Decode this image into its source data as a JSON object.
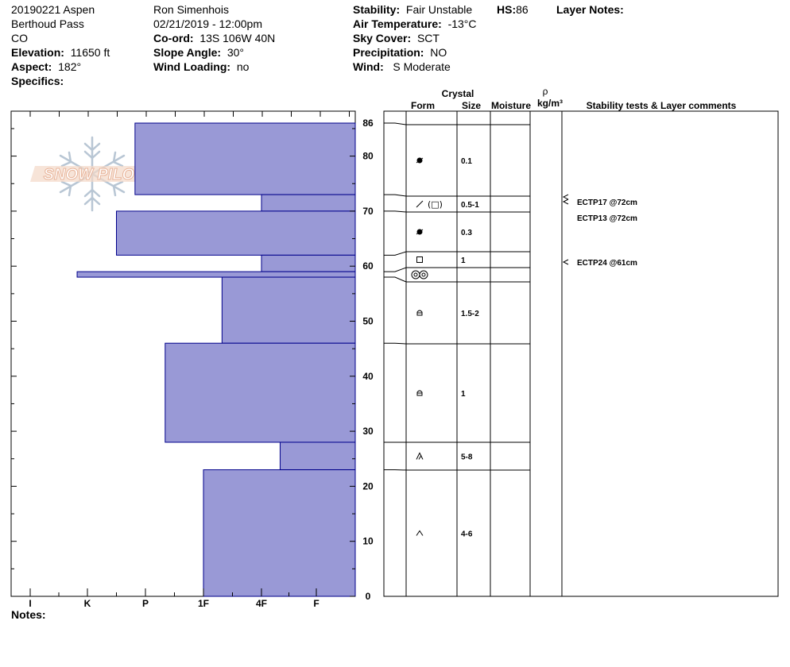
{
  "header": {
    "col1": {
      "line1": "20190221 Aspen",
      "line2": "Berthoud Pass",
      "line3": "CO",
      "elevation_label": "Elevation:",
      "elevation_value": "11650 ft",
      "aspect_label": "Aspect:",
      "aspect_value": "182°",
      "specifics_label": "Specifics:"
    },
    "col2": {
      "observer": "Ron Simenhois",
      "datetime": "02/21/2019 - 12:00pm",
      "coord_label": "Co-ord:",
      "coord_value": "13S 106W 40N",
      "slope_label": "Slope Angle:",
      "slope_value": "30°",
      "wind_loading_label": "Wind Loading:",
      "wind_loading_value": "no"
    },
    "col3": {
      "stability_label": "Stability:",
      "stability_value": "Fair Unstable",
      "hs_label": "HS:",
      "hs_value": "86",
      "air_temp_label": "Air Temperature:",
      "air_temp_value": "-13°C",
      "sky_label": "Sky Cover:",
      "sky_value": "SCT",
      "precip_label": "Precipitation:",
      "precip_value": "NO",
      "wind_label": "Wind:",
      "wind_value": "S Moderate"
    },
    "layer_notes_label": "Layer Notes:",
    "notes_label": "Notes:"
  },
  "logo": {
    "text": "SNOW PILOT"
  },
  "table_headers": {
    "crystal": "Crystal",
    "form": "Form",
    "size": "Size",
    "moisture": "Moisture",
    "rho": "ρ",
    "density_unit": "kg/m³",
    "stability": "Stability tests & Layer comments"
  },
  "colors": {
    "bar_fill": "#9999d6",
    "bar_stroke": "#00008b",
    "line": "#000000",
    "logo_text": "#e8b49a",
    "logo_flake": "#b8c6d4"
  },
  "chart_data": {
    "type": "bar",
    "orientation": "horizontal-profile",
    "title": "",
    "xlabel": "",
    "ylabel": "",
    "x_ticks": [
      "I",
      "K",
      "P",
      "1F",
      "4F",
      "F"
    ],
    "x_scale_note": "hand hardness decreasing to the right",
    "ylim": [
      0,
      86
    ],
    "y_ticks": [
      0,
      10,
      20,
      30,
      40,
      50,
      60,
      70,
      80,
      86
    ],
    "layers": [
      {
        "bottom": 73,
        "top": 86,
        "hardness": 1.82
      },
      {
        "bottom": 70,
        "top": 73,
        "hardness": 4.0
      },
      {
        "bottom": 62,
        "top": 70,
        "hardness": 1.5
      },
      {
        "bottom": 59,
        "top": 62,
        "hardness": 4.0
      },
      {
        "bottom": 58,
        "top": 59,
        "hardness": 0.82
      },
      {
        "bottom": 46,
        "top": 58,
        "hardness": 3.32
      },
      {
        "bottom": 28,
        "top": 46,
        "hardness": 2.34
      },
      {
        "bottom": 23,
        "top": 28,
        "hardness": 4.34
      },
      {
        "bottom": 0,
        "top": 23,
        "hardness": 3.0
      }
    ],
    "crystal_rows": [
      {
        "top": 86,
        "bottom": 73,
        "size": "0.1",
        "form_icon": "precip-particle-icon"
      },
      {
        "top": 73,
        "bottom": 70,
        "size": "0.5-1",
        "form_icon": "slash-bracket-square-icon",
        "form_text": "(□)"
      },
      {
        "top": 70,
        "bottom": 62,
        "size": "0.3",
        "form_icon": "precip-particle-icon"
      },
      {
        "top": 62,
        "bottom": 59,
        "size": "1",
        "form_icon": "square-icon"
      },
      {
        "top": 59,
        "bottom": 58,
        "size": "",
        "form_icon": "double-ring-icon"
      },
      {
        "top": 58,
        "bottom": 46,
        "size": "1.5-2",
        "form_icon": "small-facet-icon"
      },
      {
        "top": 46,
        "bottom": 28,
        "size": "1",
        "form_icon": "small-facet-icon"
      },
      {
        "top": 28,
        "bottom": 23,
        "size": "5-8",
        "form_icon": "depth-hoar-icon"
      },
      {
        "top": 23,
        "bottom": 0,
        "size": "4-6",
        "form_icon": "caret-icon"
      }
    ],
    "stability_tests": [
      {
        "label": "ECTP17 @72cm",
        "depth": 72
      },
      {
        "label": "ECTP13 @72cm",
        "depth": 72
      },
      {
        "label": "ECTP24 @61cm",
        "depth": 61
      }
    ]
  }
}
